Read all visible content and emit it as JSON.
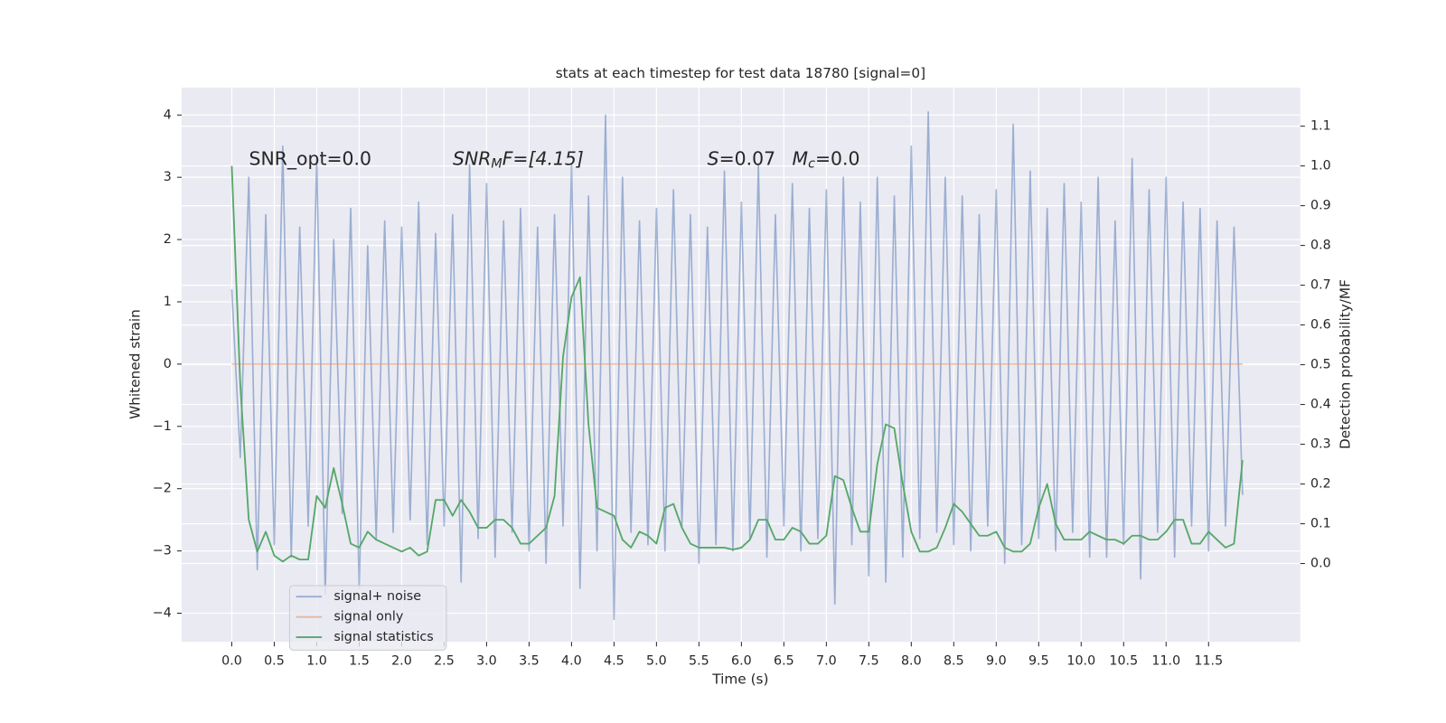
{
  "chart_data": {
    "type": "line",
    "title": "stats at each timestep for test data 18780 [signal=0]",
    "xlabel": "Time (s)",
    "ylabel": "Whitened strain",
    "y2label": "Detection probability/MF",
    "grid": true,
    "legend": "lower left",
    "background": "#eaeaf2",
    "xlim": [
      -0.59,
      12.58
    ],
    "ylim": [
      -4.46,
      4.44
    ],
    "y2lim": [
      -0.197,
      1.197
    ],
    "xticks": [
      {
        "value": 0,
        "label": "0.0"
      },
      {
        "value": 0.5,
        "label": "0.5"
      },
      {
        "value": 1,
        "label": "1.0"
      },
      {
        "value": 1.5,
        "label": "1.5"
      },
      {
        "value": 2,
        "label": "2.0"
      },
      {
        "value": 2.5,
        "label": "2.5"
      },
      {
        "value": 3,
        "label": "3.0"
      },
      {
        "value": 3.5,
        "label": "3.5"
      },
      {
        "value": 4,
        "label": "4.0"
      },
      {
        "value": 4.5,
        "label": "4.5"
      },
      {
        "value": 5,
        "label": "5.0"
      },
      {
        "value": 5.5,
        "label": "5.5"
      },
      {
        "value": 6,
        "label": "6.0"
      },
      {
        "value": 6.5,
        "label": "6.5"
      },
      {
        "value": 7,
        "label": "7.0"
      },
      {
        "value": 7.5,
        "label": "7.5"
      },
      {
        "value": 8,
        "label": "8.0"
      },
      {
        "value": 8.5,
        "label": "8.5"
      },
      {
        "value": 9,
        "label": "9.0"
      },
      {
        "value": 9.5,
        "label": "9.5"
      },
      {
        "value": 10,
        "label": "10.0"
      },
      {
        "value": 10.5,
        "label": "10.5"
      },
      {
        "value": 11,
        "label": "11.0"
      },
      {
        "value": 11.5,
        "label": "11.5"
      }
    ],
    "yticks": [
      {
        "value": -4,
        "label": "−4"
      },
      {
        "value": -3,
        "label": "−3"
      },
      {
        "value": -2,
        "label": "−2"
      },
      {
        "value": -1,
        "label": "−1"
      },
      0,
      1,
      2,
      3,
      4
    ],
    "y2ticks": [
      {
        "value": 0,
        "label": "0.0"
      },
      {
        "value": 0.1,
        "label": "0.1"
      },
      {
        "value": 0.2,
        "label": "0.2"
      },
      {
        "value": 0.3,
        "label": "0.3"
      },
      {
        "value": 0.4,
        "label": "0.4"
      },
      {
        "value": 0.5,
        "label": "0.5"
      },
      {
        "value": 0.6,
        "label": "0.6"
      },
      {
        "value": 0.7,
        "label": "0.7"
      },
      {
        "value": 0.8,
        "label": "0.8"
      },
      {
        "value": 0.9,
        "label": "0.9"
      },
      {
        "value": 1,
        "label": "1.0"
      },
      {
        "value": 1.1,
        "label": "1.1"
      }
    ],
    "annotations": [
      [
        "SNR_opt=0.0"
      ],
      [
        "SNR",
        "M",
        "F=[4.15]"
      ],
      [
        "S",
        "=0.07"
      ],
      [
        "M",
        "c",
        "=0.0"
      ]
    ],
    "x": [
      0,
      0.1,
      0.2,
      0.3,
      0.4,
      0.5,
      0.6,
      0.7,
      0.8,
      0.9,
      1,
      1.1,
      1.2,
      1.3,
      1.4,
      1.5,
      1.6,
      1.7,
      1.8,
      1.9,
      2,
      2.1,
      2.2,
      2.3,
      2.4,
      2.5,
      2.6,
      2.7,
      2.8,
      2.9,
      3,
      3.1,
      3.2,
      3.3,
      3.4,
      3.5,
      3.6,
      3.7,
      3.8,
      3.9,
      4,
      4.1,
      4.2,
      4.3,
      4.4,
      4.5,
      4.6,
      4.7,
      4.8,
      4.9,
      5,
      5.1,
      5.2,
      5.3,
      5.4,
      5.5,
      5.6,
      5.7,
      5.8,
      5.9,
      6,
      6.1,
      6.2,
      6.3,
      6.4,
      6.5,
      6.6,
      6.7,
      6.8,
      6.9,
      7,
      7.1,
      7.2,
      7.3,
      7.4,
      7.5,
      7.6,
      7.7,
      7.8,
      7.9,
      8,
      8.1,
      8.2,
      8.3,
      8.4,
      8.5,
      8.6,
      8.7,
      8.8,
      8.9,
      9,
      9.1,
      9.2,
      9.3,
      9.4,
      9.5,
      9.6,
      9.7,
      9.8,
      9.9,
      10,
      10.1,
      10.2,
      10.3,
      10.4,
      10.5,
      10.6,
      10.7,
      10.8,
      10.9,
      11,
      11.1,
      11.2,
      11.3,
      11.4,
      11.5,
      11.6,
      11.7,
      11.8,
      11.9
    ],
    "series": [
      {
        "name": "signal+ noise",
        "color": "#4c72b0",
        "opacity": 0.5,
        "values": [
          1.2,
          -1.5,
          3.0,
          -3.3,
          2.4,
          -2.9,
          3.5,
          -3.1,
          2.2,
          -2.6,
          3.3,
          -3.7,
          2.0,
          -2.4,
          2.5,
          -3.6,
          1.9,
          -2.8,
          2.3,
          -2.7,
          2.2,
          -2.5,
          2.6,
          -2.9,
          2.1,
          -2.6,
          2.4,
          -3.5,
          3.2,
          -2.8,
          2.9,
          -3.1,
          2.3,
          -2.7,
          2.5,
          -3.0,
          2.2,
          -3.2,
          2.4,
          -2.6,
          3.2,
          -3.6,
          2.7,
          -3.0,
          4.0,
          -4.1,
          3.0,
          -2.7,
          2.3,
          -2.9,
          2.5,
          -3.0,
          2.8,
          -2.6,
          2.4,
          -3.2,
          2.2,
          -2.9,
          3.1,
          -3.0,
          2.6,
          -2.8,
          3.2,
          -3.1,
          2.4,
          -2.6,
          2.9,
          -3.0,
          2.5,
          -2.8,
          2.8,
          -3.85,
          3.0,
          -2.9,
          2.6,
          -3.4,
          3.0,
          -3.5,
          2.7,
          -3.1,
          3.5,
          -2.8,
          4.05,
          -2.7,
          3.0,
          -2.9,
          2.7,
          -3.0,
          2.4,
          -2.6,
          2.8,
          -3.2,
          3.85,
          -2.9,
          3.1,
          -2.8,
          2.5,
          -3.0,
          2.9,
          -2.7,
          2.6,
          -3.1,
          3.0,
          -3.1,
          2.3,
          -2.9,
          3.3,
          -3.45,
          2.8,
          -2.7,
          3.0,
          -3.1,
          2.6,
          -2.6,
          2.5,
          -3.0,
          2.3,
          -2.6,
          2.2,
          -2.1
        ]
      },
      {
        "name": "signal only",
        "color": "#dd8452",
        "opacity": 0.5,
        "values": [
          0,
          0,
          0,
          0,
          0,
          0,
          0,
          0,
          0,
          0,
          0,
          0,
          0,
          0,
          0,
          0,
          0,
          0,
          0,
          0,
          0,
          0,
          0,
          0,
          0,
          0,
          0,
          0,
          0,
          0,
          0,
          0,
          0,
          0,
          0,
          0,
          0,
          0,
          0,
          0,
          0,
          0,
          0,
          0,
          0,
          0,
          0,
          0,
          0,
          0,
          0,
          0,
          0,
          0,
          0,
          0,
          0,
          0,
          0,
          0,
          0,
          0,
          0,
          0,
          0,
          0,
          0,
          0,
          0,
          0,
          0,
          0,
          0,
          0,
          0,
          0,
          0,
          0,
          0,
          0,
          0,
          0,
          0,
          0,
          0,
          0,
          0,
          0,
          0,
          0,
          0,
          0,
          0,
          0,
          0,
          0,
          0,
          0,
          0,
          0,
          0,
          0,
          0,
          0,
          0,
          0,
          0,
          0,
          0,
          0,
          0,
          0,
          0,
          0,
          0,
          0,
          0,
          0,
          0,
          0
        ]
      },
      {
        "name": "signal statistics",
        "color": "#55a868",
        "opacity": 1,
        "axis": "y2",
        "values": [
          1.0,
          0.45,
          0.11,
          0.03,
          0.08,
          0.02,
          0.005,
          0.02,
          0.01,
          0.01,
          0.17,
          0.14,
          0.24,
          0.15,
          0.05,
          0.04,
          0.08,
          0.06,
          0.05,
          0.04,
          0.03,
          0.04,
          0.02,
          0.03,
          0.16,
          0.16,
          0.12,
          0.16,
          0.13,
          0.09,
          0.09,
          0.11,
          0.11,
          0.09,
          0.05,
          0.05,
          0.07,
          0.09,
          0.17,
          0.52,
          0.67,
          0.72,
          0.35,
          0.14,
          0.13,
          0.12,
          0.06,
          0.04,
          0.08,
          0.07,
          0.05,
          0.14,
          0.15,
          0.09,
          0.05,
          0.04,
          0.04,
          0.04,
          0.04,
          0.035,
          0.04,
          0.06,
          0.11,
          0.11,
          0.06,
          0.06,
          0.09,
          0.08,
          0.05,
          0.05,
          0.07,
          0.22,
          0.21,
          0.14,
          0.08,
          0.08,
          0.25,
          0.35,
          0.34,
          0.2,
          0.08,
          0.03,
          0.03,
          0.04,
          0.09,
          0.15,
          0.13,
          0.1,
          0.07,
          0.07,
          0.08,
          0.04,
          0.03,
          0.03,
          0.05,
          0.14,
          0.2,
          0.1,
          0.06,
          0.06,
          0.06,
          0.08,
          0.07,
          0.06,
          0.06,
          0.05,
          0.07,
          0.07,
          0.06,
          0.06,
          0.08,
          0.11,
          0.11,
          0.05,
          0.05,
          0.08,
          0.06,
          0.04,
          0.05,
          0.26
        ]
      }
    ]
  }
}
